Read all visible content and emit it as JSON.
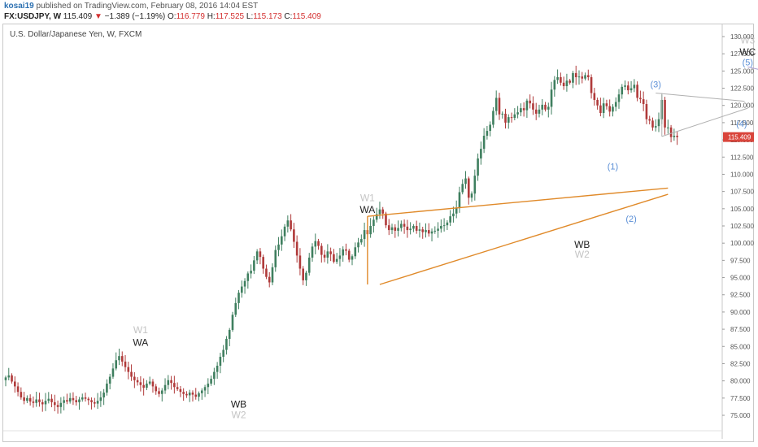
{
  "header": {
    "user": "kosai19",
    "published": "published on TradingView.com, February 08, 2016 14:04 EST",
    "symbol": "FX:USDJPY, W",
    "price": "115.409",
    "change": "−1.389 (−1.19%)",
    "o_label": "O:",
    "o_value": "116.779",
    "h_label": "H:",
    "h_value": "117.525",
    "l_label": "L:",
    "l_value": "115.173",
    "c_label": "C:",
    "c_value": "115.409"
  },
  "colors": {
    "up": "#3f7f5f",
    "down": "#b03a3a",
    "orange": "#e08a2a",
    "channel": "#a89bd0",
    "triangle": "#b0b0b0",
    "price_tag": "#d9453b",
    "wave_blue": "#5b8fd6"
  },
  "chart_data": {
    "type": "candlestick",
    "title": "U.S. Dollar/Japanese Yen, W, FXCM",
    "ylim": [
      73.5,
      131.0
    ],
    "y_ticks": [
      "130.000",
      "127.500",
      "125.000",
      "122.500",
      "120.000",
      "117.500",
      "115.000",
      "112.500",
      "110.000",
      "107.500",
      "105.000",
      "102.500",
      "100.000",
      "97.500",
      "95.000",
      "92.500",
      "90.000",
      "87.500",
      "85.000",
      "82.500",
      "80.000",
      "77.500",
      "75.000"
    ],
    "last_price": "115.409",
    "bar_count": 220,
    "closes": [
      80.5,
      80.8,
      79.9,
      79.2,
      78.4,
      77.6,
      77.1,
      77.5,
      77.0,
      76.8,
      77.3,
      76.9,
      76.6,
      77.1,
      77.4,
      76.9,
      76.5,
      76.2,
      76.8,
      77.2,
      77.0,
      77.5,
      77.2,
      76.9,
      77.3,
      77.6,
      77.4,
      77.2,
      76.9,
      76.7,
      77.1,
      77.6,
      78.3,
      79.6,
      80.6,
      81.8,
      83.0,
      83.6,
      82.8,
      82.0,
      81.3,
      80.6,
      80.1,
      79.8,
      79.4,
      79.0,
      79.6,
      79.9,
      79.2,
      78.5,
      78.1,
      78.6,
      79.4,
      80.1,
      79.7,
      79.1,
      78.8,
      78.4,
      78.1,
      77.9,
      78.3,
      78.0,
      77.7,
      78.2,
      78.6,
      79.1,
      79.6,
      80.3,
      81.3,
      82.2,
      83.5,
      84.5,
      86.1,
      87.4,
      89.6,
      91.3,
      92.8,
      93.7,
      94.5,
      95.6,
      96.0,
      97.5,
      98.8,
      98.0,
      96.3,
      95.1,
      94.3,
      96.5,
      99.0,
      99.8,
      101.0,
      102.4,
      103.3,
      102.0,
      100.2,
      98.2,
      96.3,
      94.6,
      95.7,
      97.9,
      99.5,
      100.3,
      99.6,
      98.3,
      97.9,
      98.8,
      98.4,
      97.3,
      97.7,
      98.2,
      99.1,
      98.9,
      97.6,
      98.1,
      99.4,
      100.1,
      100.6,
      101.9,
      101.3,
      102.5,
      103.4,
      104.2,
      104.9,
      104.3,
      102.6,
      101.9,
      102.3,
      101.8,
      102.2,
      102.8,
      102.4,
      101.9,
      102.1,
      102.5,
      101.8,
      102.0,
      101.6,
      101.9,
      101.4,
      101.7,
      101.8,
      102.1,
      102.5,
      102.6,
      103.0,
      103.9,
      104.3,
      105.1,
      107.4,
      108.6,
      109.4,
      106.6,
      107.2,
      109.8,
      112.3,
      113.7,
      115.6,
      116.3,
      117.2,
      119.2,
      121.1,
      118.7,
      118.8,
      117.5,
      118.3,
      118.2,
      118.7,
      119.0,
      119.6,
      119.3,
      120.7,
      120.3,
      119.4,
      118.8,
      119.4,
      120.1,
      119.4,
      119.8,
      122.3,
      123.7,
      124.1,
      123.3,
      122.8,
      123.6,
      123.3,
      124.7,
      124.1,
      124.2,
      123.9,
      124.4,
      124.1,
      121.8,
      120.8,
      120.0,
      118.9,
      120.3,
      119.9,
      119.1,
      119.8,
      120.5,
      121.6,
      122.7,
      122.9,
      122.2,
      122.5,
      123.0,
      121.1,
      120.9,
      120.2,
      118.0,
      117.8,
      116.8,
      117.0,
      118.0,
      120.8,
      116.8,
      116.8,
      115.4,
      115.6,
      115.409
    ],
    "annotations": [
      {
        "id": "w1-left",
        "text": "W1",
        "bar": 44,
        "price": 86.9,
        "style": "grey"
      },
      {
        "id": "wa-left",
        "text": "WA",
        "bar": 44,
        "price": 85.1,
        "style": "black"
      },
      {
        "id": "wb-left",
        "text": "WB",
        "bar": 76,
        "price": 76.1,
        "style": "black"
      },
      {
        "id": "w2-left",
        "text": "W2",
        "bar": 76,
        "price": 74.6,
        "style": "grey"
      },
      {
        "id": "w1-mid",
        "text": "W1",
        "bar": 118,
        "price": 106.1,
        "style": "grey"
      },
      {
        "id": "wa-mid",
        "text": "WA",
        "bar": 118,
        "price": 104.4,
        "style": "black"
      },
      {
        "id": "wb-mid",
        "text": "WB",
        "bar": 188,
        "price": 99.3,
        "style": "black"
      },
      {
        "id": "w2-mid",
        "text": "W2",
        "bar": 188,
        "price": 97.9,
        "style": "grey"
      },
      {
        "id": "wave-1",
        "text": "(1)",
        "bar": 198,
        "price": 110.7,
        "style": "blue"
      },
      {
        "id": "wave-2",
        "text": "(2)",
        "bar": 204,
        "price": 103.1,
        "style": "blue"
      },
      {
        "id": "wave-3",
        "text": "(3)",
        "bar": 212,
        "price": 122.6,
        "style": "blue"
      },
      {
        "id": "wave-4",
        "text": "(4)",
        "bar": 240,
        "price": 116.9,
        "style": "blue"
      },
      {
        "id": "w3-top",
        "text": "W3",
        "bar": 242,
        "price": 129.0,
        "style": "grey"
      },
      {
        "id": "wc-top",
        "text": "WC",
        "bar": 242,
        "price": 127.3,
        "style": "black"
      },
      {
        "id": "wave-5",
        "text": "(5)",
        "bar": 242,
        "price": 125.8,
        "style": "blue"
      }
    ],
    "trendlines": [
      {
        "id": "wedge-upper",
        "color": "orange",
        "p1": [
          118,
          103.9
        ],
        "p2": [
          216,
          108.0
        ]
      },
      {
        "id": "wedge-lower",
        "color": "orange",
        "p1": [
          122,
          94.0
        ],
        "p2": [
          216,
          107.1
        ]
      },
      {
        "id": "wedge-base",
        "color": "orange",
        "p1": [
          118,
          94.0
        ],
        "p2": [
          118,
          103.9
        ]
      },
      {
        "id": "triangle-upper",
        "color": "triangle",
        "p1": [
          212,
          121.8
        ],
        "p2": [
          241,
          120.6
        ]
      },
      {
        "id": "triangle-lower",
        "color": "triangle",
        "p1": [
          214,
          115.5
        ],
        "p2": [
          242,
          119.6
        ]
      },
      {
        "id": "triangle-base",
        "color": "triangle",
        "p1": [
          214,
          115.5
        ],
        "p2": [
          214,
          121.8
        ]
      },
      {
        "id": "channel-upper",
        "color": "channel",
        "p1": [
          242,
          125.6
        ],
        "p2": [
          306,
          119.0
        ]
      },
      {
        "id": "channel-lower",
        "color": "channel",
        "p1": [
          256,
          116.2
        ],
        "p2": [
          306,
          110.6
        ]
      },
      {
        "id": "channel-base",
        "color": "channel",
        "p1": [
          256,
          116.2
        ],
        "p2": [
          256,
          123.5
        ]
      }
    ]
  }
}
